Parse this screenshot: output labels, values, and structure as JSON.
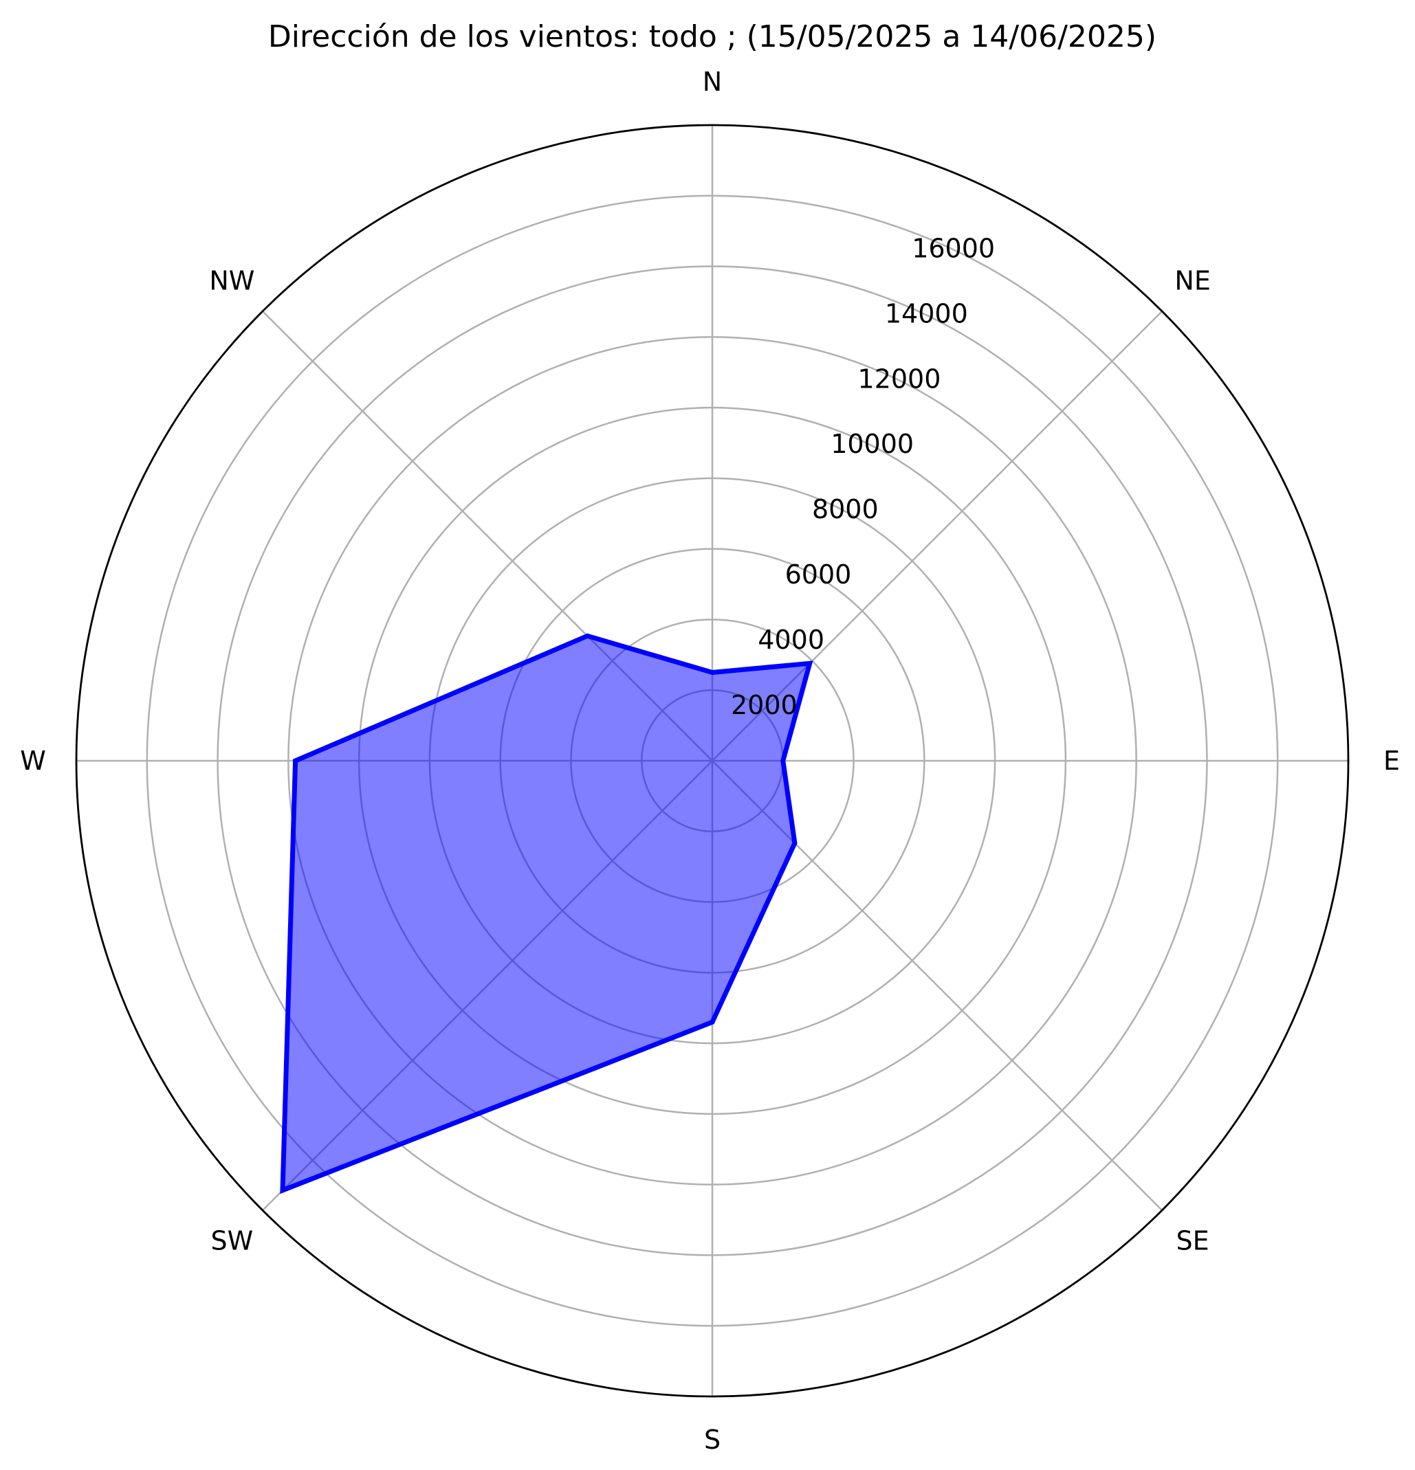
{
  "chart_data": {
    "type": "radar",
    "title": "Dirección de los vientos: todo ; (15/05/2025 a 14/06/2025)",
    "categories": [
      "N",
      "NE",
      "E",
      "SE",
      "S",
      "SW",
      "W",
      "NW"
    ],
    "values": [
      2500,
      3900,
      2000,
      3300,
      7400,
      17200,
      11800,
      5000
    ],
    "r_ticks": [
      2000,
      4000,
      6000,
      8000,
      10000,
      12000,
      14000,
      16000
    ],
    "r_tick_labels": [
      "2000",
      "4000",
      "6000",
      "8000",
      "10000",
      "12000",
      "14000",
      "16000"
    ],
    "rlim": [
      0,
      18000
    ],
    "grid": true,
    "colors": {
      "line": "#0000ff",
      "fill": "#0000ff",
      "grid": "#b0b0b0",
      "frame": "#000000"
    }
  }
}
